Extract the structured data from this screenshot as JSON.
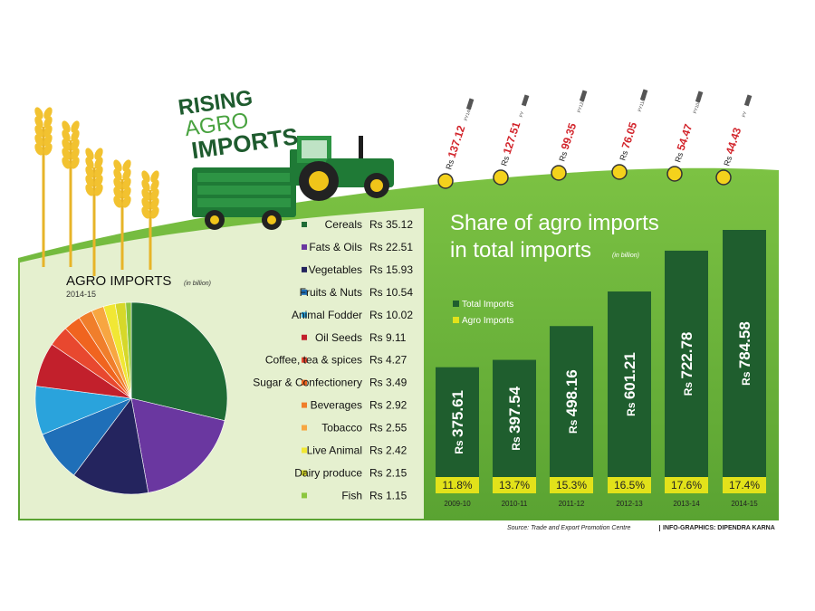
{
  "headline": {
    "line1": "RISING",
    "line2": "AGRO",
    "line3": "IMPORTS"
  },
  "years": [
    {
      "label": "Rs 137.12",
      "fy": "FY14/15"
    },
    {
      "label": "Rs 127.51",
      "fy": "FY"
    },
    {
      "label": "Rs 99.35",
      "fy": "FY12/13"
    },
    {
      "label": "Rs 76.05",
      "fy": "FY11/12"
    },
    {
      "label": "Rs 54.47",
      "fy": "FY10/11"
    },
    {
      "label": "Rs 44.43",
      "fy": "FY"
    }
  ],
  "colors": {
    "dark_green": "#1f5e2e",
    "light_green": "#6ab23e",
    "agro_yellow": "#e2e21a",
    "panel_bg": "#e5f0cf",
    "rs_red": "#d2232a"
  },
  "footer": {
    "source": "Source: Trade and Export Promotion Centre",
    "credit": "INFO-GRAPHICS: DIPENDRA KARNA"
  },
  "chart_data": [
    {
      "type": "pie",
      "title": "AGRO IMPORTS",
      "unit": "(in billion)",
      "subtitle": "2014-15",
      "currency": "Rs",
      "categories": [
        "Cereals",
        "Fats & Oils",
        "Vegetables",
        "Fruits & Nuts",
        "Animal Fodder",
        "Oil Seeds",
        "Coffee, tea & spices",
        "Sugar & Confectionery",
        "Beverages",
        "Tobacco",
        "Live Animal",
        "Dairy produce",
        "Fish"
      ],
      "values": [
        35.12,
        22.51,
        15.93,
        10.54,
        10.02,
        9.11,
        4.27,
        3.49,
        2.92,
        2.55,
        2.42,
        2.15,
        1.15
      ],
      "value_labels": [
        "Rs 35.12",
        "Rs 22.51",
        "Rs 15.93",
        "Rs 10.54",
        "Rs 10.02",
        "Rs 9.11",
        "Rs 4.27",
        "Rs 3.49",
        "Rs 2.92",
        "Rs 2.55",
        "Rs 2.42",
        "Rs 2.15",
        "Rs 1.15"
      ],
      "colors": [
        "#1e6b35",
        "#6a37a0",
        "#24245e",
        "#1f6fb8",
        "#2aa3dc",
        "#c2202c",
        "#e8482f",
        "#f0641f",
        "#f07e2b",
        "#f7a641",
        "#f1e734",
        "#d6d82a",
        "#8cc63f"
      ],
      "legend_position": "right"
    },
    {
      "type": "bar",
      "title": "Share of agro imports in total imports",
      "unit": "(in billion)",
      "categories": [
        "2009-10",
        "2010-11",
        "2011-12",
        "2012-13",
        "2013-14",
        "2014-15"
      ],
      "series": [
        {
          "name": "Total Imports",
          "values": [
            375.61,
            397.54,
            498.16,
            601.21,
            722.78,
            784.58
          ],
          "labels": [
            "Rs 375.61",
            "Rs 397.54",
            "Rs 498.16",
            "Rs 601.21",
            "Rs 722.78",
            "Rs 784.58"
          ]
        },
        {
          "name": "Agro Imports",
          "share_percent": [
            11.8,
            13.7,
            15.3,
            16.5,
            17.6,
            17.4
          ],
          "labels": [
            "11.8%",
            "13.7%",
            "15.3%",
            "16.5%",
            "17.6%",
            "17.4%"
          ]
        }
      ],
      "legend_position": "top-left"
    }
  ]
}
